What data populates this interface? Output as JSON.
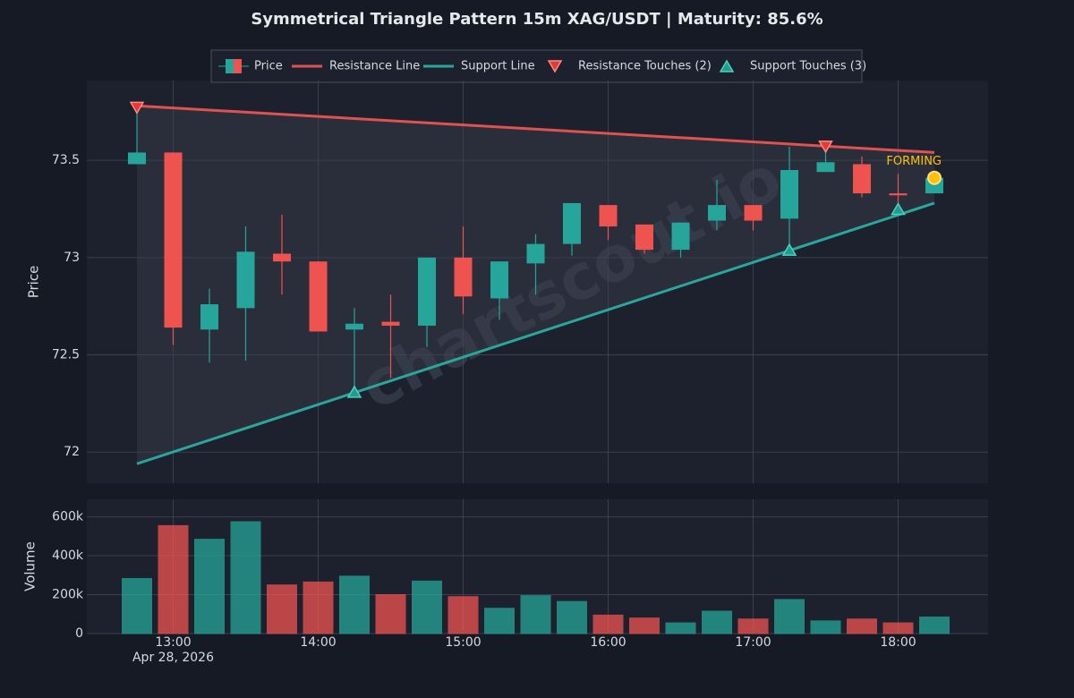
{
  "chart_data": {
    "type": "candlestick",
    "title": "Symmetrical Triangle Pattern 15m XAG/USDT | Maturity: 85.6%",
    "watermark": "chartscout.io",
    "x": [
      "12:45",
      "13:00",
      "13:15",
      "13:30",
      "13:45",
      "14:00",
      "14:15",
      "14:30",
      "14:45",
      "15:00",
      "15:15",
      "15:30",
      "15:45",
      "16:00",
      "16:15",
      "16:30",
      "16:45",
      "17:00",
      "17:15",
      "17:30",
      "17:45",
      "18:00",
      "18:15"
    ],
    "xticks": [
      "13:00",
      "14:00",
      "15:00",
      "16:00",
      "17:00",
      "18:00"
    ],
    "date_label": "Apr 28, 2026",
    "price": {
      "name": "Price",
      "ylabel": "Price",
      "up_color": "#26a69a",
      "down_color": "#ef5350",
      "open": [
        73.48,
        73.54,
        72.63,
        72.74,
        73.02,
        72.98,
        72.63,
        72.67,
        72.65,
        73.0,
        72.79,
        72.97,
        73.07,
        73.27,
        73.17,
        73.04,
        73.19,
        73.27,
        73.2,
        73.44,
        73.48,
        73.33,
        73.33
      ],
      "high": [
        73.77,
        73.54,
        72.84,
        73.16,
        73.22,
        72.98,
        72.74,
        72.81,
        73.0,
        73.16,
        72.98,
        73.12,
        73.28,
        73.27,
        73.17,
        73.18,
        73.4,
        73.27,
        73.57,
        73.58,
        73.52,
        73.43,
        73.41
      ],
      "low": [
        73.48,
        72.55,
        72.46,
        72.47,
        72.81,
        72.62,
        72.31,
        72.38,
        72.54,
        72.71,
        72.68,
        72.81,
        73.01,
        73.09,
        73.02,
        73.0,
        73.14,
        73.14,
        73.05,
        73.44,
        73.31,
        73.26,
        73.33
      ],
      "close": [
        73.54,
        72.64,
        72.76,
        73.03,
        72.98,
        72.62,
        72.66,
        72.65,
        73.0,
        72.8,
        72.98,
        73.07,
        73.28,
        73.16,
        73.04,
        73.18,
        73.27,
        73.19,
        73.45,
        73.49,
        73.33,
        73.32,
        73.41
      ],
      "ylim": [
        71.84,
        73.91
      ],
      "yticks": [
        72,
        72.5,
        73,
        73.5
      ]
    },
    "resistance_line": {
      "name": "Resistance Line",
      "color": "#e05252",
      "x": [
        "12:45",
        "18:15"
      ],
      "values": [
        73.78,
        73.54
      ]
    },
    "support_line": {
      "name": "Support Line",
      "color": "#2aa69c",
      "x": [
        "12:45",
        "18:15"
      ],
      "values": [
        71.94,
        73.28
      ]
    },
    "resistance_touches": {
      "name": "Resistance Touches (2)",
      "color": "#e53935",
      "x": [
        "12:45",
        "17:30"
      ],
      "values": [
        73.77,
        73.57
      ]
    },
    "support_touches": {
      "name": "Support Touches (3)",
      "color": "#1f9e8f",
      "x": [
        "14:15",
        "17:15",
        "18:00"
      ],
      "values": [
        72.31,
        73.04,
        73.25
      ]
    },
    "forming": {
      "label": "FORMING",
      "color": "#ffc107",
      "x": "18:15",
      "value": 73.41
    },
    "volume": {
      "ylabel": "Volume",
      "values": [
        283000,
        555000,
        485000,
        575000,
        250000,
        265000,
        295000,
        200000,
        270000,
        190000,
        130000,
        195000,
        165000,
        95000,
        80000,
        55000,
        115000,
        75000,
        175000,
        65000,
        75000,
        55000,
        85000
      ],
      "ylim": [
        0,
        690000
      ],
      "yticks": [
        0,
        {
          "value": 200000,
          "label": "200k"
        },
        {
          "value": 400000,
          "label": "400k"
        },
        {
          "value": 600000,
          "label": "600k"
        }
      ]
    },
    "grid": true
  }
}
